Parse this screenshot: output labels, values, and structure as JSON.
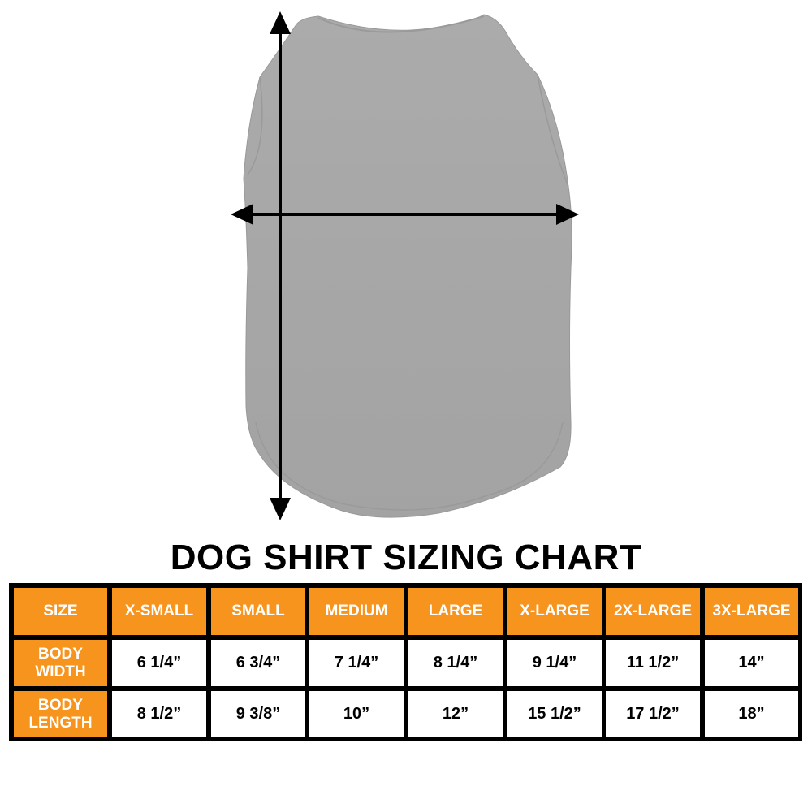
{
  "title": "DOG SHIRT SIZING CHART",
  "colors": {
    "header": "#f7941d",
    "border": "#000000",
    "shirt": "#a9a9a9"
  },
  "icons": [
    "vertical-length-arrow-icon",
    "horizontal-width-arrow-icon"
  ],
  "table": {
    "header_label": "SIZE",
    "sizes": [
      "X-SMALL",
      "SMALL",
      "MEDIUM",
      "LARGE",
      "X-LARGE",
      "2X-LARGE",
      "3X-LARGE"
    ],
    "rows": [
      {
        "label_line1": "BODY",
        "label_line2": "WIDTH",
        "values": [
          "6 1/4”",
          "6 3/4”",
          "7 1/4”",
          "8 1/4”",
          "9 1/4”",
          "11 1/2”",
          "14”"
        ]
      },
      {
        "label_line1": "BODY",
        "label_line2": "LENGTH",
        "values": [
          "8 1/2”",
          "9 3/8”",
          "10”",
          "12”",
          "15 1/2”",
          "17 1/2”",
          "18”"
        ]
      }
    ]
  }
}
